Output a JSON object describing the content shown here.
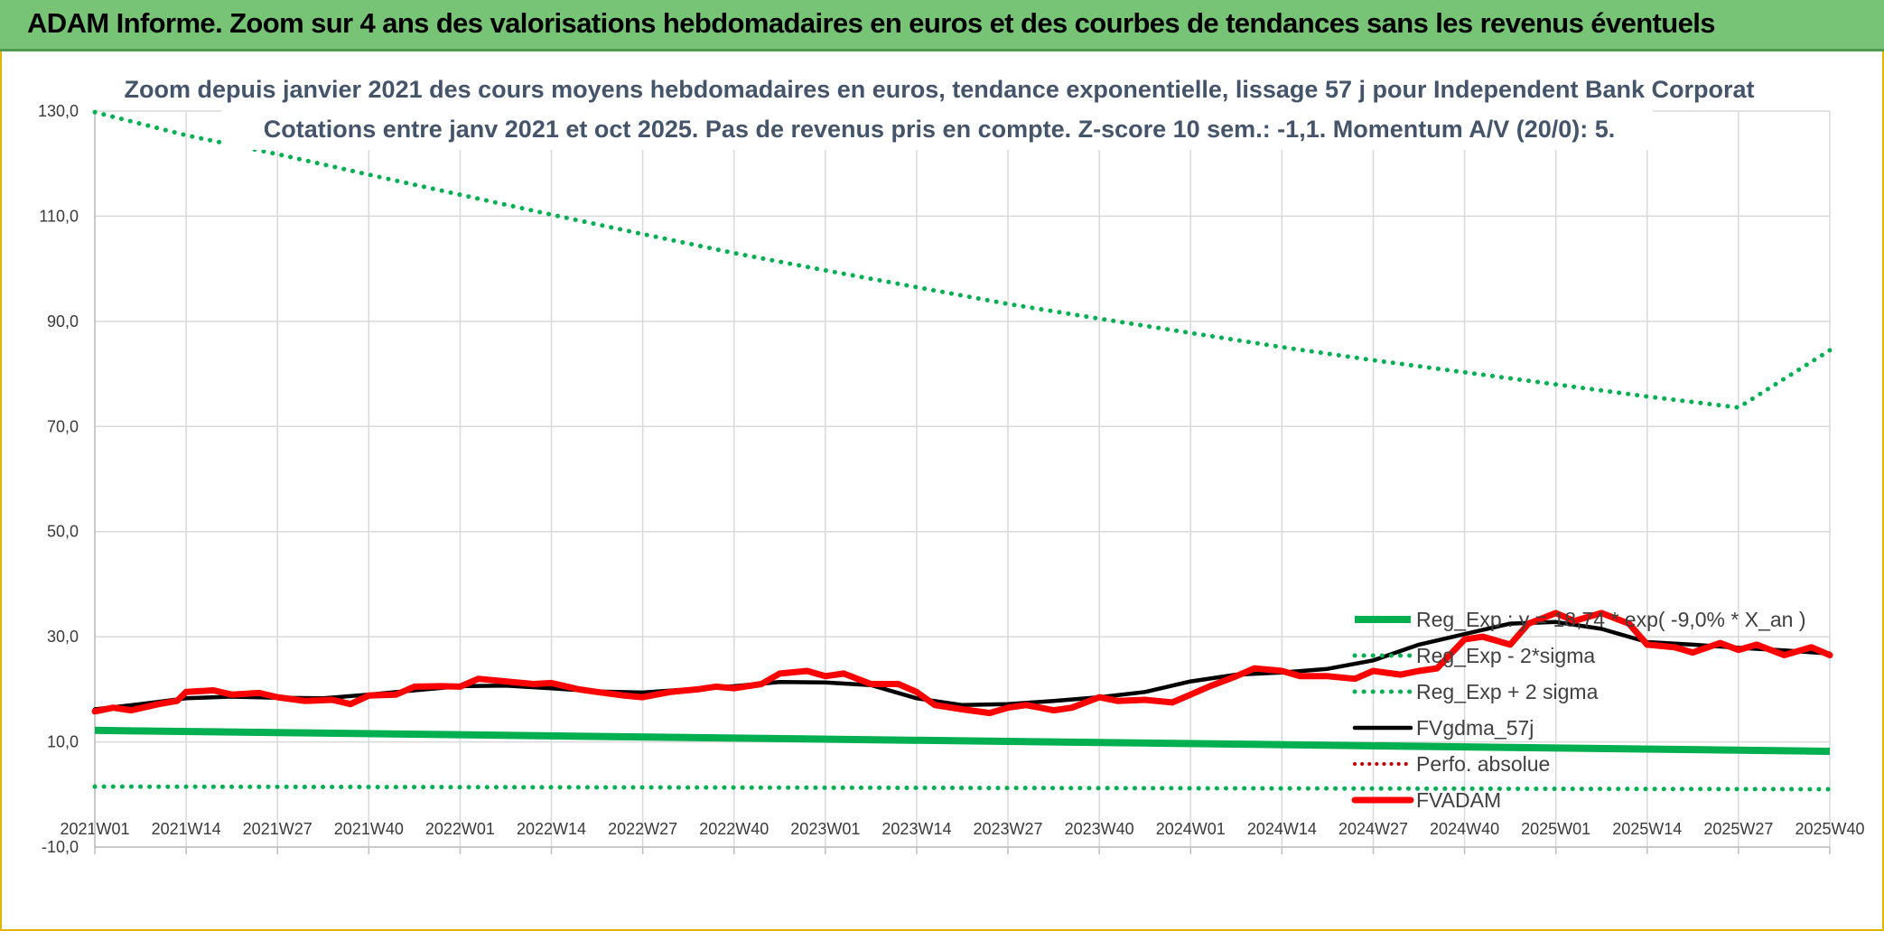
{
  "banner": {
    "title": "ADAM Informe. Zoom sur 4 ans des valorisations hebdomadaires en euros et des courbes de tendances sans les revenus éventuels"
  },
  "colors": {
    "banner_bg": "#77c477",
    "green": "#00b050",
    "black": "#000000",
    "red": "#ff0000",
    "dark_red_dotted": "#c00000",
    "title_text": "#44546a"
  },
  "chart_data": {
    "type": "line",
    "title": "Zoom depuis janvier 2021 des cours moyens hebdomadaires en euros, tendance exponentielle, lissage 57 j pour Independent Bank Corporat",
    "subtitle": "Cotations entre janv 2021 et oct 2025. Pas de revenus pris en compte. Z-score 10 sem.: -1,1. Momentum A/V (20/0): 5.",
    "ylim": [
      -10,
      130
    ],
    "yticks": [
      "130,0",
      "110,0",
      "90,0",
      "70,0",
      "50,0",
      "30,0",
      "10,0",
      "-10,0"
    ],
    "ytick_values": [
      130,
      110,
      90,
      70,
      50,
      30,
      10,
      -10
    ],
    "xticks": [
      "2021W01",
      "2021W14",
      "2021W27",
      "2021W40",
      "2022W01",
      "2022W14",
      "2022W27",
      "2022W40",
      "2023W01",
      "2023W14",
      "2023W27",
      "2023W40",
      "2024W01",
      "2024W14",
      "2024W27",
      "2024W40",
      "2025W01",
      "2025W14",
      "2025W27",
      "2025W40"
    ],
    "grid": true,
    "legend_position": "bottom-right",
    "series": [
      {
        "name": "Reg_Exp : y = 18,74 * exp( -9,0% * X_an )",
        "style": "solid",
        "color": "#00b050",
        "points": [
          [
            0,
            12.2
          ],
          [
            19,
            8.2
          ]
        ]
      },
      {
        "name": "Reg_Exp - 2*sigma",
        "style": "dotted",
        "color": "#00b050",
        "points": [
          [
            0,
            1.5
          ],
          [
            19,
            1.0
          ]
        ]
      },
      {
        "name": "Reg_Exp + 2 sigma",
        "style": "dotted",
        "color": "#00b050",
        "points": [
          [
            0,
            129.8
          ],
          [
            1,
            125.4
          ],
          [
            2,
            121.8
          ],
          [
            3,
            117.9
          ],
          [
            4,
            114.1
          ],
          [
            5,
            110.3
          ],
          [
            6,
            106.6
          ],
          [
            7,
            103.0
          ],
          [
            8,
            99.7
          ],
          [
            9,
            96.5
          ],
          [
            10,
            93.3
          ],
          [
            11,
            90.5
          ],
          [
            12,
            87.8
          ],
          [
            13,
            85.1
          ],
          [
            14,
            82.6
          ],
          [
            15,
            80.3
          ],
          [
            16,
            78.0
          ],
          [
            17,
            75.7
          ],
          [
            18,
            73.6
          ],
          [
            19,
            84.5
          ]
        ]
      },
      {
        "name": "FVgdma_57j",
        "style": "solid",
        "color": "#000000",
        "points": [
          [
            0,
            16.2
          ],
          [
            0.5,
            17.2
          ],
          [
            1,
            18.3
          ],
          [
            1.5,
            18.6
          ],
          [
            2,
            18.4
          ],
          [
            2.5,
            18.3
          ],
          [
            3,
            19.0
          ],
          [
            3.5,
            19.8
          ],
          [
            4,
            20.6
          ],
          [
            4.5,
            20.7
          ],
          [
            5,
            20.2
          ],
          [
            5.5,
            19.6
          ],
          [
            6,
            19.4
          ],
          [
            6.5,
            20.0
          ],
          [
            7,
            20.6
          ],
          [
            7.5,
            21.4
          ],
          [
            8,
            21.3
          ],
          [
            8.5,
            20.8
          ],
          [
            9,
            18.3
          ],
          [
            9.5,
            17.0
          ],
          [
            10,
            17.2
          ],
          [
            10.5,
            17.8
          ],
          [
            11,
            18.5
          ],
          [
            11.5,
            19.5
          ],
          [
            12,
            21.5
          ],
          [
            12.5,
            22.8
          ],
          [
            13,
            23.2
          ],
          [
            13.5,
            23.9
          ],
          [
            14,
            25.5
          ],
          [
            14.5,
            28.5
          ],
          [
            15,
            30.5
          ],
          [
            15.5,
            32.5
          ],
          [
            16,
            32.8
          ],
          [
            16.5,
            31.5
          ],
          [
            17,
            29.0
          ],
          [
            17.5,
            28.5
          ],
          [
            18,
            27.9
          ],
          [
            18.5,
            27.4
          ],
          [
            19,
            26.8
          ]
        ]
      },
      {
        "name": "Perfo. absolue",
        "style": "dotted",
        "color": "#c00000",
        "points": []
      },
      {
        "name": "FVADAM",
        "style": "solid",
        "color": "#ff0000",
        "points": [
          [
            0,
            15.8
          ],
          [
            0.2,
            16.5
          ],
          [
            0.4,
            16.0
          ],
          [
            0.7,
            17.2
          ],
          [
            0.9,
            17.8
          ],
          [
            1.0,
            19.5
          ],
          [
            1.3,
            19.8
          ],
          [
            1.5,
            19.0
          ],
          [
            1.8,
            19.3
          ],
          [
            2.0,
            18.5
          ],
          [
            2.3,
            17.8
          ],
          [
            2.6,
            18.0
          ],
          [
            2.8,
            17.2
          ],
          [
            3.0,
            18.8
          ],
          [
            3.3,
            19.0
          ],
          [
            3.5,
            20.5
          ],
          [
            3.8,
            20.6
          ],
          [
            4.0,
            20.5
          ],
          [
            4.2,
            22.0
          ],
          [
            4.5,
            21.5
          ],
          [
            4.8,
            21.0
          ],
          [
            5.0,
            21.2
          ],
          [
            5.3,
            20.0
          ],
          [
            5.5,
            19.5
          ],
          [
            5.8,
            18.8
          ],
          [
            6.0,
            18.5
          ],
          [
            6.3,
            19.5
          ],
          [
            6.6,
            20.0
          ],
          [
            6.8,
            20.5
          ],
          [
            7.0,
            20.2
          ],
          [
            7.3,
            21.0
          ],
          [
            7.5,
            23.0
          ],
          [
            7.8,
            23.5
          ],
          [
            8.0,
            22.5
          ],
          [
            8.2,
            23.0
          ],
          [
            8.5,
            21.0
          ],
          [
            8.8,
            21.0
          ],
          [
            9.0,
            19.5
          ],
          [
            9.2,
            17.0
          ],
          [
            9.5,
            16.2
          ],
          [
            9.8,
            15.5
          ],
          [
            10.0,
            16.5
          ],
          [
            10.2,
            17.0
          ],
          [
            10.5,
            16.0
          ],
          [
            10.7,
            16.5
          ],
          [
            11.0,
            18.5
          ],
          [
            11.2,
            17.8
          ],
          [
            11.5,
            18.0
          ],
          [
            11.8,
            17.5
          ],
          [
            12.0,
            19.0
          ],
          [
            12.2,
            20.5
          ],
          [
            12.5,
            22.5
          ],
          [
            12.7,
            24.0
          ],
          [
            13.0,
            23.5
          ],
          [
            13.2,
            22.5
          ],
          [
            13.5,
            22.5
          ],
          [
            13.8,
            22.0
          ],
          [
            14.0,
            23.5
          ],
          [
            14.3,
            22.8
          ],
          [
            14.5,
            23.5
          ],
          [
            14.7,
            24.0
          ],
          [
            15.0,
            29.5
          ],
          [
            15.2,
            30.0
          ],
          [
            15.5,
            28.5
          ],
          [
            15.7,
            32.5
          ],
          [
            16.0,
            34.5
          ],
          [
            16.2,
            33.0
          ],
          [
            16.5,
            34.5
          ],
          [
            16.8,
            32.5
          ],
          [
            17.0,
            28.5
          ],
          [
            17.3,
            28.0
          ],
          [
            17.5,
            27.0
          ],
          [
            17.8,
            28.8
          ],
          [
            18.0,
            27.5
          ],
          [
            18.2,
            28.5
          ],
          [
            18.5,
            26.5
          ],
          [
            18.8,
            28.0
          ],
          [
            19.0,
            26.5
          ]
        ]
      }
    ]
  }
}
